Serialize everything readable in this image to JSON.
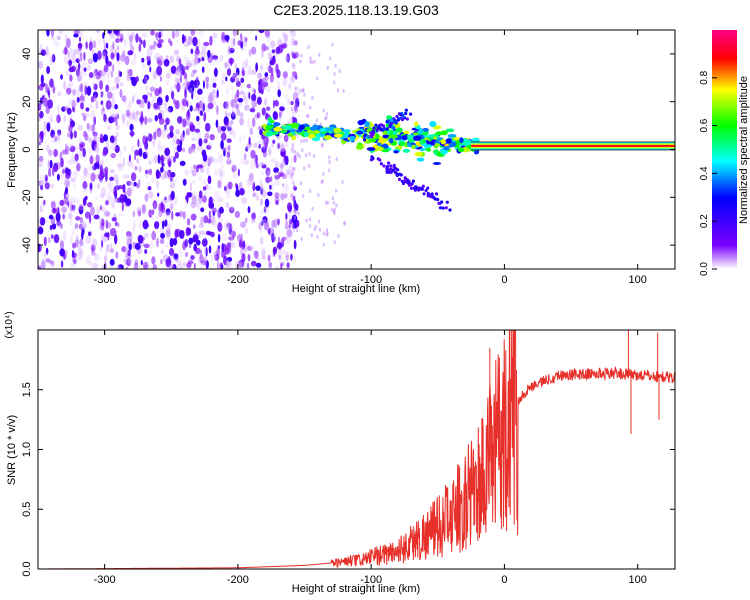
{
  "page_title": "C2E3.2025.118.13.19.G03",
  "chart_data": [
    {
      "type": "heatmap",
      "xlabel": "Height of straight line (km)",
      "ylabel": "Frequency (Hz)",
      "xlim": [
        -350,
        128
      ],
      "ylim": [
        -50,
        50
      ],
      "x_ticks": [
        -300,
        -200,
        -100,
        0,
        100
      ],
      "y_ticks": [
        -40,
        -20,
        0,
        20,
        40
      ],
      "colorbar": {
        "label": "Normalized spectral amplitude",
        "range": [
          0,
          1
        ],
        "ticks": [
          "0.0",
          "0.2",
          "0.4",
          "0.6",
          "0.8"
        ],
        "colors": [
          "#ffffff",
          "#7a00ff",
          "#0000ff",
          "#00ffff",
          "#00ff00",
          "#ffff00",
          "#ff0000",
          "#ff0088"
        ]
      },
      "features": [
        {
          "name": "noise region",
          "x_range": [
            -350,
            -155
          ],
          "freq_range": [
            -50,
            50
          ],
          "amplitude": 0.15
        },
        {
          "name": "signal band",
          "x_range": [
            -180,
            128
          ],
          "freq_start": 9,
          "freq_end": 1.5,
          "amplitude": 0.65
        },
        {
          "name": "constant tone",
          "x_range": [
            -20,
            128
          ],
          "freq": 1.5,
          "amplitude": 1.0
        }
      ]
    },
    {
      "type": "line",
      "xlabel": "Height of straight line (km)",
      "ylabel": "SNR (10 * v/v)",
      "y_multiplier": "(x10⁴)",
      "xlim": [
        -350,
        128
      ],
      "ylim": [
        0,
        2.0
      ],
      "x_ticks": [
        -300,
        -200,
        -100,
        0,
        100
      ],
      "y_ticks": [
        "0.0",
        "0.5",
        "1.0",
        "1.5"
      ],
      "series": [
        {
          "color": "#e8302a",
          "envelope": [
            {
              "x": -350,
              "y": 0.0
            },
            {
              "x": -200,
              "y": 0.01
            },
            {
              "x": -150,
              "y": 0.03
            },
            {
              "x": -110,
              "y": 0.07
            },
            {
              "x": -80,
              "y": 0.15
            },
            {
              "x": -50,
              "y": 0.35
            },
            {
              "x": -30,
              "y": 0.55
            },
            {
              "x": -15,
              "y": 0.8
            },
            {
              "x": -5,
              "y": 1.05
            },
            {
              "x": 5,
              "y": 1.35
            },
            {
              "x": 20,
              "y": 1.53
            },
            {
              "x": 40,
              "y": 1.62
            },
            {
              "x": 80,
              "y": 1.64
            },
            {
              "x": 128,
              "y": 1.6
            }
          ],
          "spikes": [
            {
              "x": -11,
              "y": 1.85
            },
            {
              "x": 93,
              "y": 2.0
            },
            {
              "x": 95,
              "y": 1.13
            },
            {
              "x": 115,
              "y": 1.98
            },
            {
              "x": 116,
              "y": 1.25
            }
          ]
        }
      ]
    }
  ]
}
